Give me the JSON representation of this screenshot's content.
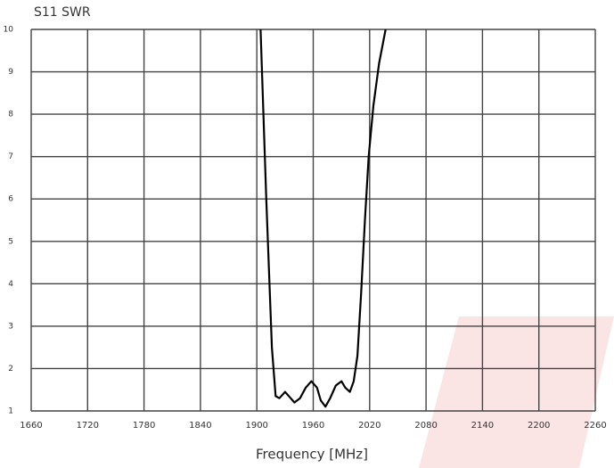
{
  "chart_data": {
    "type": "line",
    "title": "S11 SWR",
    "x_label": "Frequency [MHz]",
    "xlim": [
      1660,
      2260
    ],
    "xticks": [
      1660,
      1720,
      1780,
      1840,
      1900,
      1960,
      2020,
      2080,
      2140,
      2200,
      2260
    ],
    "ylim": [
      1,
      10
    ],
    "yticks": [
      1,
      2,
      3,
      4,
      5,
      6,
      7,
      8,
      9,
      10
    ],
    "grid": true,
    "series": [
      {
        "name": "S11 SWR",
        "color": "#000000",
        "x": [
          1904,
          1910,
          1916,
          1920,
          1924,
          1930,
          1936,
          1940,
          1946,
          1952,
          1958,
          1964,
          1968,
          1973,
          1978,
          1984,
          1990,
          1994,
          1999,
          2003,
          2007,
          2011,
          2015,
          2019,
          2024,
          2030,
          2037
        ],
        "values": [
          10,
          6,
          2.5,
          1.35,
          1.3,
          1.45,
          1.3,
          1.2,
          1.3,
          1.55,
          1.7,
          1.55,
          1.25,
          1.1,
          1.3,
          1.6,
          1.7,
          1.55,
          1.45,
          1.7,
          2.3,
          3.8,
          5.5,
          7,
          8.2,
          9.2,
          10
        ]
      }
    ]
  }
}
